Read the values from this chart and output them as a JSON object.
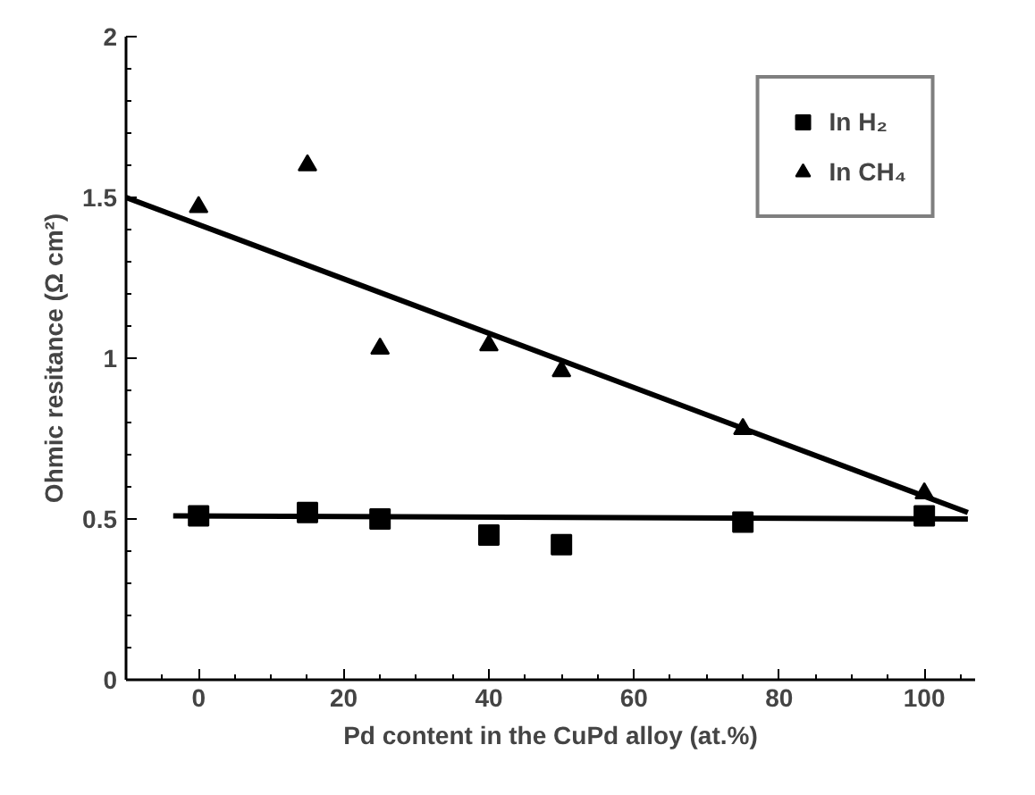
{
  "chart_data": {
    "type": "scatter",
    "xlabel": "Pd content in the CuPd alloy (at.%)",
    "ylabel": "Ohmic resitance (Ω cm²)",
    "xlim": [
      -10,
      107
    ],
    "ylim": [
      0,
      2
    ],
    "xticks": [
      0,
      20,
      40,
      60,
      80,
      100
    ],
    "yticks": [
      0,
      0.5,
      1,
      1.5,
      2
    ],
    "grid": false,
    "legend": "top right",
    "series": [
      {
        "name": "In H₂",
        "color": "#000000",
        "marker": "square",
        "x": [
          0,
          15,
          25,
          40,
          50,
          75,
          100
        ],
        "values": [
          0.51,
          0.52,
          0.5,
          0.45,
          0.42,
          0.49,
          0.51
        ]
      },
      {
        "name": "In CH₄",
        "color": "#000000",
        "marker": "triangle",
        "x": [
          0,
          15,
          25,
          40,
          50,
          75,
          100
        ],
        "values": [
          1.47,
          1.6,
          1.03,
          1.04,
          0.96,
          0.78,
          0.58
        ]
      },
      {
        "type": "line",
        "color": "#000000",
        "x": [
          -3.5,
          106
        ],
        "values": [
          0.51,
          0.5
        ]
      },
      {
        "type": "line",
        "color": "#000000",
        "x": [
          -10,
          106
        ],
        "values": [
          1.5,
          0.52
        ]
      }
    ]
  }
}
